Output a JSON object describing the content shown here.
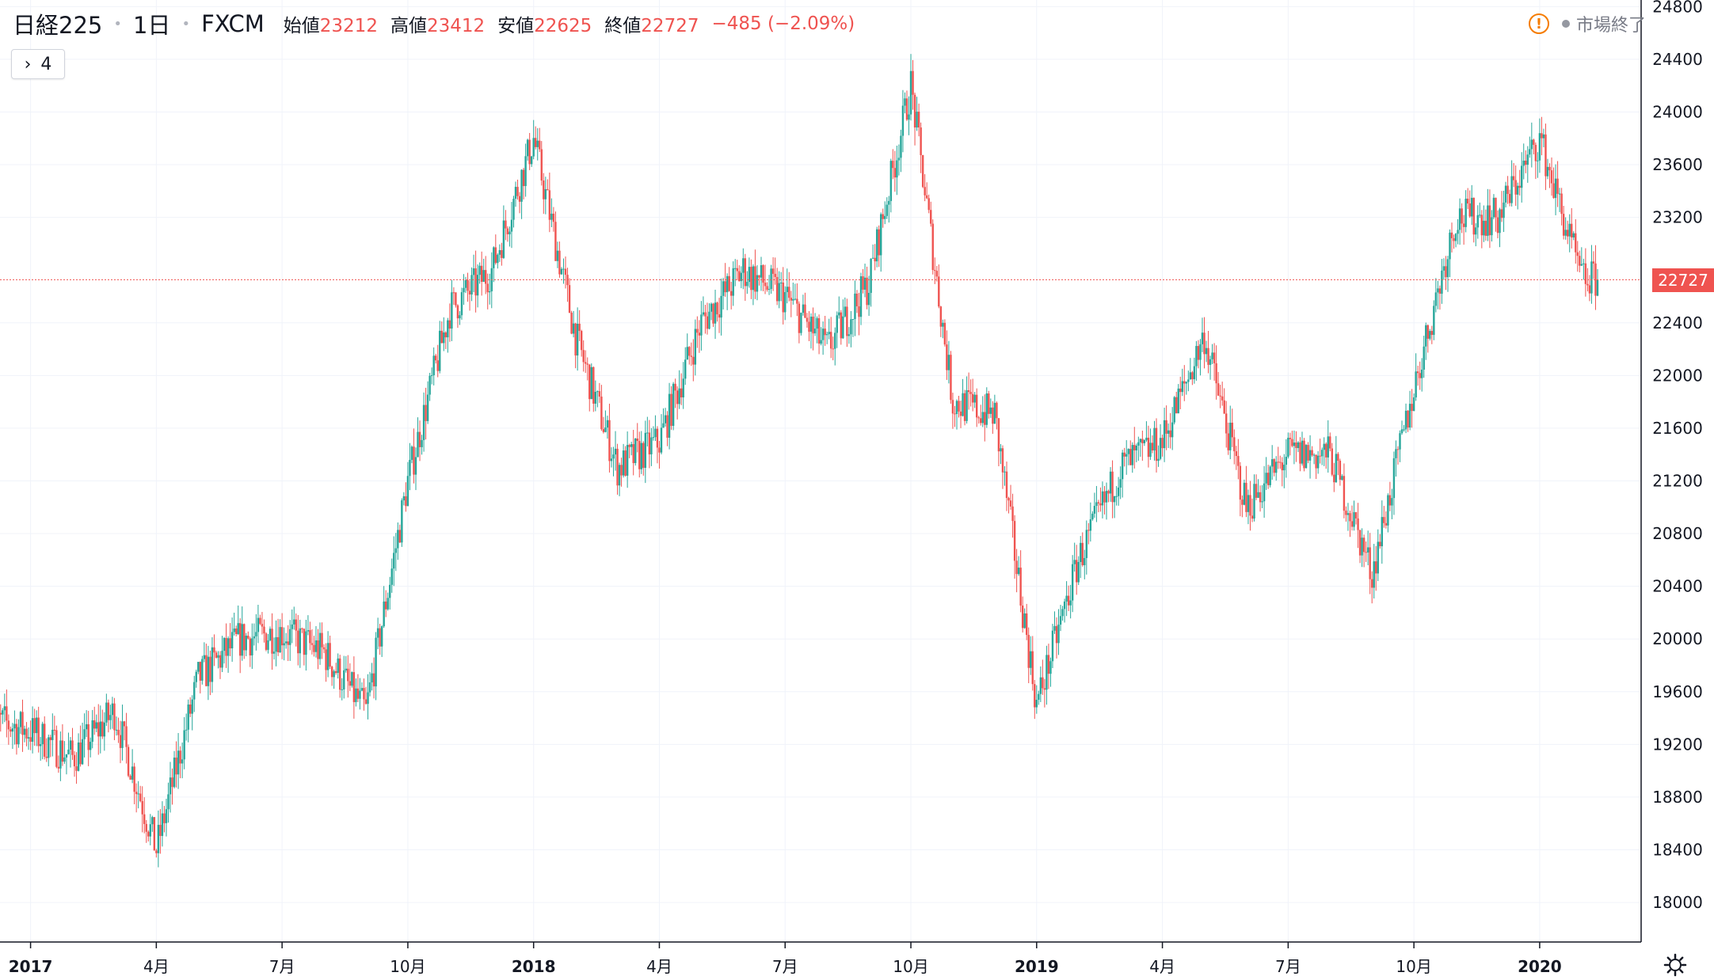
{
  "header": {
    "symbol": "日経225",
    "interval": "1日",
    "source": "FXCM",
    "open_label": "始値",
    "open": "23212",
    "high_label": "高値",
    "high": "23412",
    "low_label": "安値",
    "low": "22625",
    "close_label": "終値",
    "close": "22727",
    "change": "−485 (−2.09%)"
  },
  "indicator_toggle": {
    "count": "4"
  },
  "market_status": {
    "text": "市場終了",
    "icon": "warning-icon"
  },
  "last_price_label": "22727",
  "colors": {
    "up": "#26a69a",
    "down": "#ef5350",
    "grid": "#f0f3fa",
    "axis_text": "#131722"
  },
  "chart_data": {
    "type": "candlestick",
    "y_ticks": [
      18000,
      18400,
      18800,
      19200,
      19600,
      20000,
      20400,
      20800,
      21200,
      21600,
      22000,
      22400,
      23200,
      23600,
      24000,
      24400,
      24800
    ],
    "y_tick_labels": [
      "18000",
      "18400",
      "18800",
      "19200",
      "19600",
      "20000",
      "20400",
      "20800",
      "21200",
      "21600",
      "22000",
      "22400",
      "23200",
      "23600",
      "24000",
      "24400",
      "24800"
    ],
    "ylim": [
      17700,
      24850
    ],
    "x_ticks": [
      {
        "label": "2017",
        "date": "2017-01"
      },
      {
        "label": "4月",
        "date": "2017-04"
      },
      {
        "label": "7月",
        "date": "2017-07"
      },
      {
        "label": "10月",
        "date": "2017-10"
      },
      {
        "label": "2018",
        "date": "2018-01"
      },
      {
        "label": "4月",
        "date": "2018-04"
      },
      {
        "label": "7月",
        "date": "2018-07"
      },
      {
        "label": "10月",
        "date": "2018-10"
      },
      {
        "label": "2019",
        "date": "2019-01"
      },
      {
        "label": "4月",
        "date": "2019-04"
      },
      {
        "label": "7月",
        "date": "2019-07"
      },
      {
        "label": "10月",
        "date": "2019-10"
      },
      {
        "label": "2020",
        "date": "2020-01"
      }
    ],
    "last_price": 22727,
    "series": [
      {
        "date": "2016-12",
        "close": 19400
      },
      {
        "date": "2017-01",
        "close": 19300
      },
      {
        "date": "2017-02",
        "close": 19100
      },
      {
        "date": "2017-03",
        "close": 19450
      },
      {
        "date": "2017-04",
        "close": 18400
      },
      {
        "date": "2017-05",
        "close": 19700
      },
      {
        "date": "2017-06",
        "close": 20000
      },
      {
        "date": "2017-07",
        "close": 20050
      },
      {
        "date": "2017-08",
        "close": 19900
      },
      {
        "date": "2017-09",
        "close": 19450
      },
      {
        "date": "2017-10",
        "close": 21200
      },
      {
        "date": "2017-11",
        "close": 22500
      },
      {
        "date": "2017-12",
        "close": 22800
      },
      {
        "date": "2018-01",
        "close": 23800
      },
      {
        "date": "2018-02",
        "close": 22300
      },
      {
        "date": "2018-03",
        "close": 21300
      },
      {
        "date": "2018-04",
        "close": 21500
      },
      {
        "date": "2018-05",
        "close": 22400
      },
      {
        "date": "2018-06",
        "close": 22800
      },
      {
        "date": "2018-07",
        "close": 22600
      },
      {
        "date": "2018-08",
        "close": 22200
      },
      {
        "date": "2018-09",
        "close": 22700
      },
      {
        "date": "2018-10",
        "close": 24200
      },
      {
        "date": "2018-11",
        "close": 21800
      },
      {
        "date": "2018-12",
        "close": 21700
      },
      {
        "date": "2019-01",
        "close": 19500
      },
      {
        "date": "2019-02",
        "close": 20600
      },
      {
        "date": "2019-03",
        "close": 21300
      },
      {
        "date": "2019-04",
        "close": 21500
      },
      {
        "date": "2019-05",
        "close": 22300
      },
      {
        "date": "2019-06",
        "close": 21000
      },
      {
        "date": "2019-07",
        "close": 21400
      },
      {
        "date": "2019-08",
        "close": 21400
      },
      {
        "date": "2019-09",
        "close": 20500
      },
      {
        "date": "2019-10",
        "close": 21900
      },
      {
        "date": "2019-11",
        "close": 23200
      },
      {
        "date": "2019-12",
        "close": 23200
      },
      {
        "date": "2020-01",
        "close": 23800
      },
      {
        "date": "2020-02",
        "close": 22727
      }
    ]
  }
}
